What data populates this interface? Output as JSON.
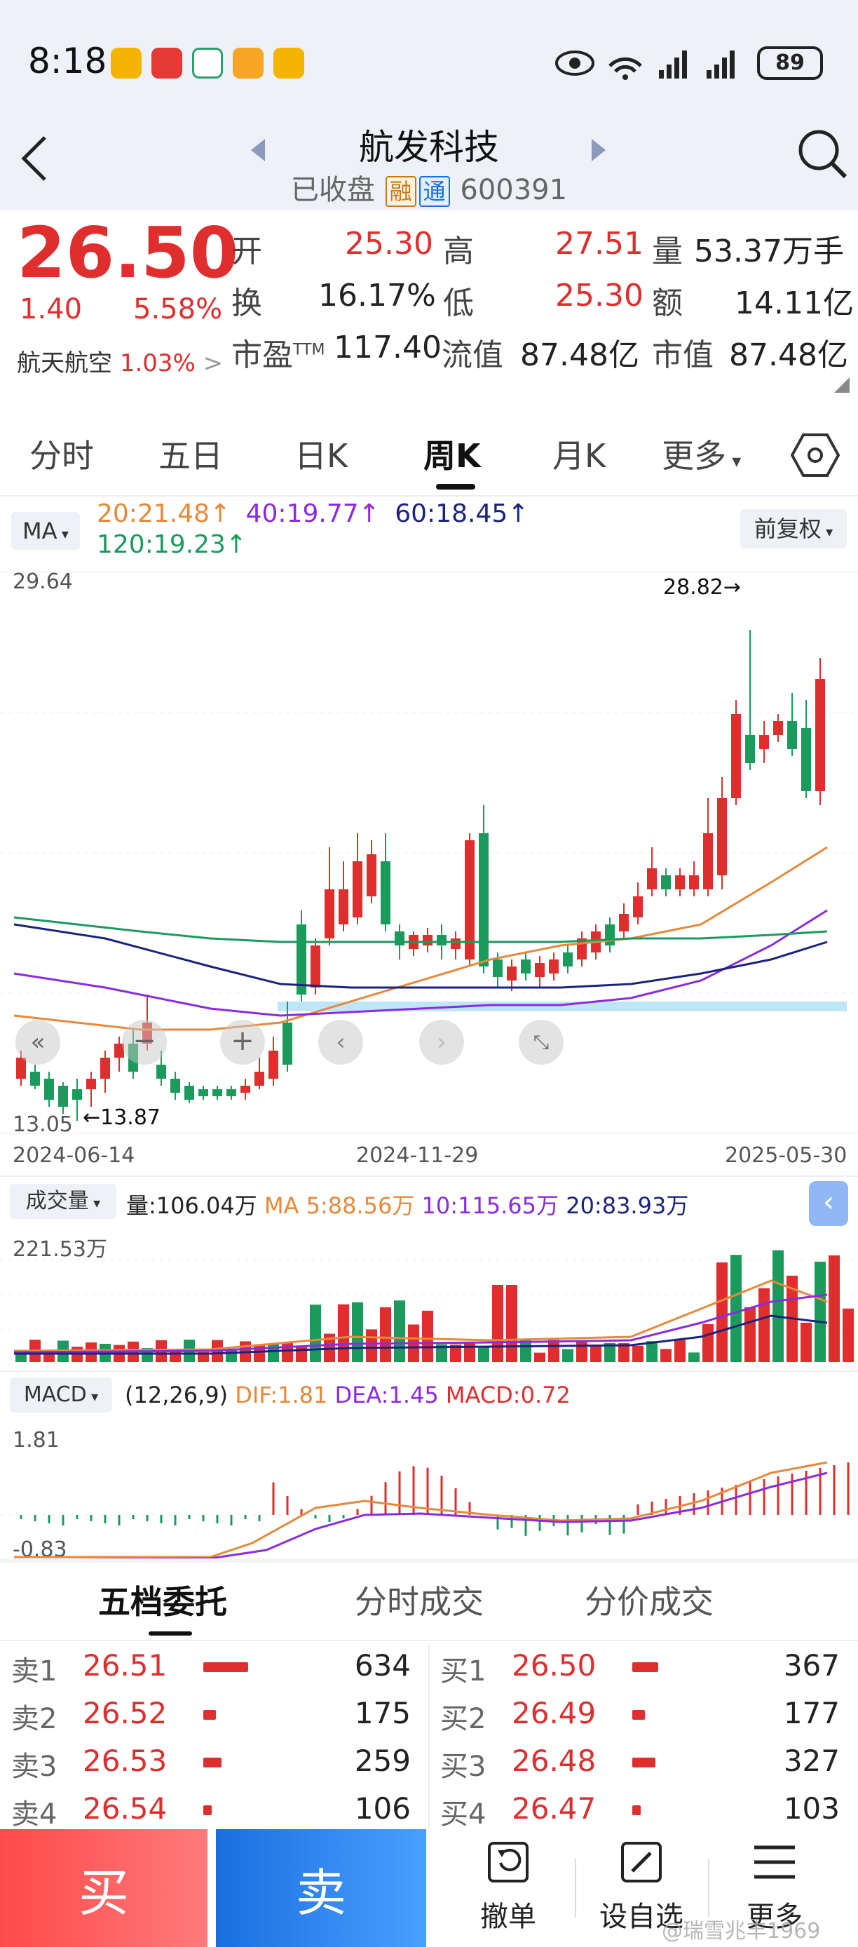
{
  "status": {
    "time": "8:18",
    "battery": "89"
  },
  "header": {
    "title": "航发科技",
    "status": "已收盘",
    "tag_rong": "融",
    "tag_tong": "通",
    "code": "600391"
  },
  "quote": {
    "price": "26.50",
    "change": "1.40",
    "change_pct": "5.58%",
    "sector": "航天航空",
    "sector_pct": "1.03%",
    "open_label": "开",
    "open": "25.30",
    "high_label": "高",
    "high": "27.51",
    "vol_label": "量",
    "vol": "53.37万手",
    "turnover_label": "换",
    "turnover": "16.17%",
    "low_label": "低",
    "low": "25.30",
    "amount_label": "额",
    "amount": "14.11亿",
    "pe_label": "市盈",
    "pe_sup": "TTM",
    "pe": "117.40",
    "float_label": "流值",
    "float": "87.48亿",
    "mcap_label": "市值",
    "mcap": "87.48亿"
  },
  "tabs": [
    "分时",
    "五日",
    "日K",
    "周K",
    "月K",
    "更多"
  ],
  "ma_bar": {
    "ma_btn": "MA",
    "ma20": "20:21.48↑",
    "ma40": "40:19.77↑",
    "ma60": "60:18.45↑",
    "ma120": "120:19.23↑",
    "adjust": "前复权"
  },
  "kline": {
    "y_top": "29.64",
    "y_bottom": "13.05",
    "high_mark": "28.82→",
    "low_mark": "←13.87",
    "dates": [
      "2024-06-14",
      "2024-11-29",
      "2025-05-30"
    ]
  },
  "volume": {
    "btn": "成交量",
    "current": "量:106.04万",
    "ma5": "MA 5:88.56万",
    "ma10": "10:115.65万",
    "ma20": "20:83.93万",
    "y_top": "221.53万"
  },
  "macd": {
    "btn": "MACD",
    "params": "(12,26,9)",
    "dif": "DIF:1.81",
    "dea": "DEA:1.45",
    "macd": "MACD:0.72",
    "y_top": "1.81",
    "y_bottom": "-0.83"
  },
  "book_tabs": [
    "五档委托",
    "分时成交",
    "分价成交"
  ],
  "sell_rows": [
    {
      "label": "卖1",
      "price": "26.51",
      "vol": "634",
      "bar": 0.58
    },
    {
      "label": "卖2",
      "price": "26.52",
      "vol": "175",
      "bar": 0.16
    },
    {
      "label": "卖3",
      "price": "26.53",
      "vol": "259",
      "bar": 0.24
    },
    {
      "label": "卖4",
      "price": "26.54",
      "vol": "106",
      "bar": 0.1
    }
  ],
  "buy_rows": [
    {
      "label": "买1",
      "price": "26.50",
      "vol": "367",
      "bar": 0.34
    },
    {
      "label": "买2",
      "price": "26.49",
      "vol": "177",
      "bar": 0.16
    },
    {
      "label": "买3",
      "price": "26.48",
      "vol": "327",
      "bar": 0.3
    },
    {
      "label": "买4",
      "price": "26.47",
      "vol": "103",
      "bar": 0.1
    }
  ],
  "actions": {
    "buy": "买",
    "sell": "卖",
    "cancel": "撤单",
    "watch": "设自选",
    "more": "更多",
    "watermark": "@瑞雪兆丰1969"
  },
  "colors": {
    "up": "#e02e2e",
    "down": "#1a9b5c",
    "ma20": "#e8883a",
    "ma40": "#8a2be2",
    "ma60": "#1a237e",
    "ma120": "#1a9b5c"
  }
}
